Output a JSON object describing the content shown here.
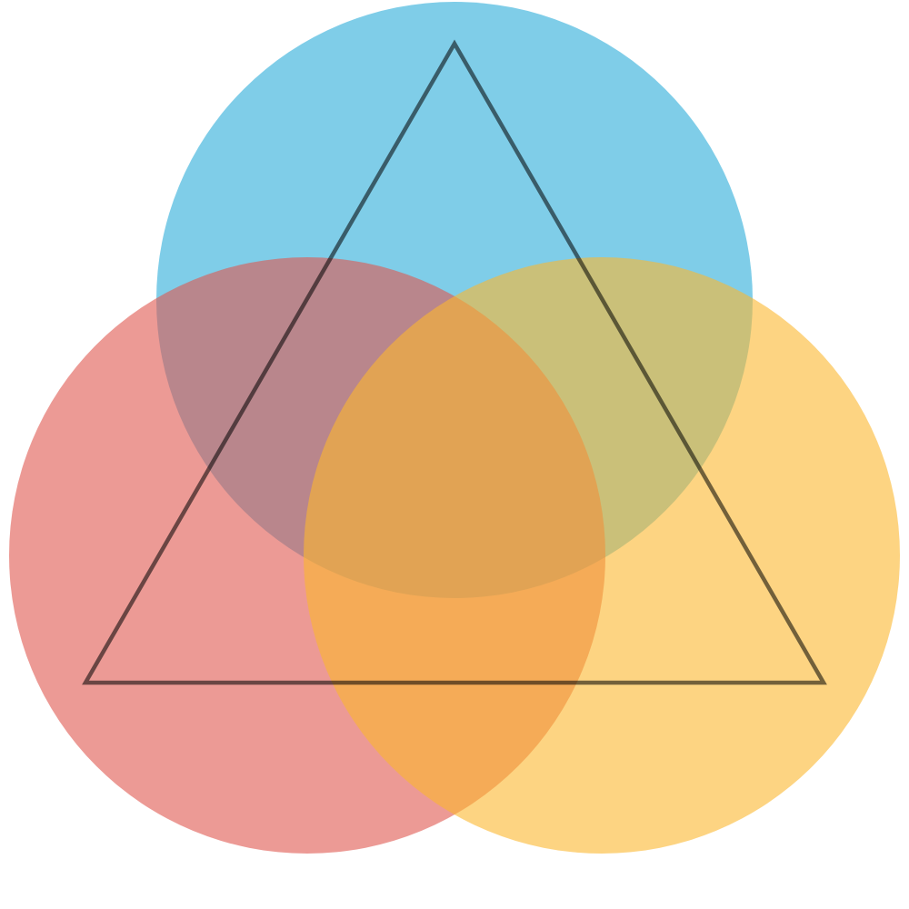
{
  "diagram": {
    "circles": [
      {
        "id": "top",
        "color": "#29abd9",
        "opacity": 0.6
      },
      {
        "id": "left",
        "color": "#e0574f",
        "opacity": 0.6
      },
      {
        "id": "right",
        "color": "#fcb82e",
        "opacity": 0.6
      }
    ],
    "triangle": {
      "stroke_color": "#000000",
      "stroke_opacity": 0.55,
      "fill": "none"
    }
  }
}
